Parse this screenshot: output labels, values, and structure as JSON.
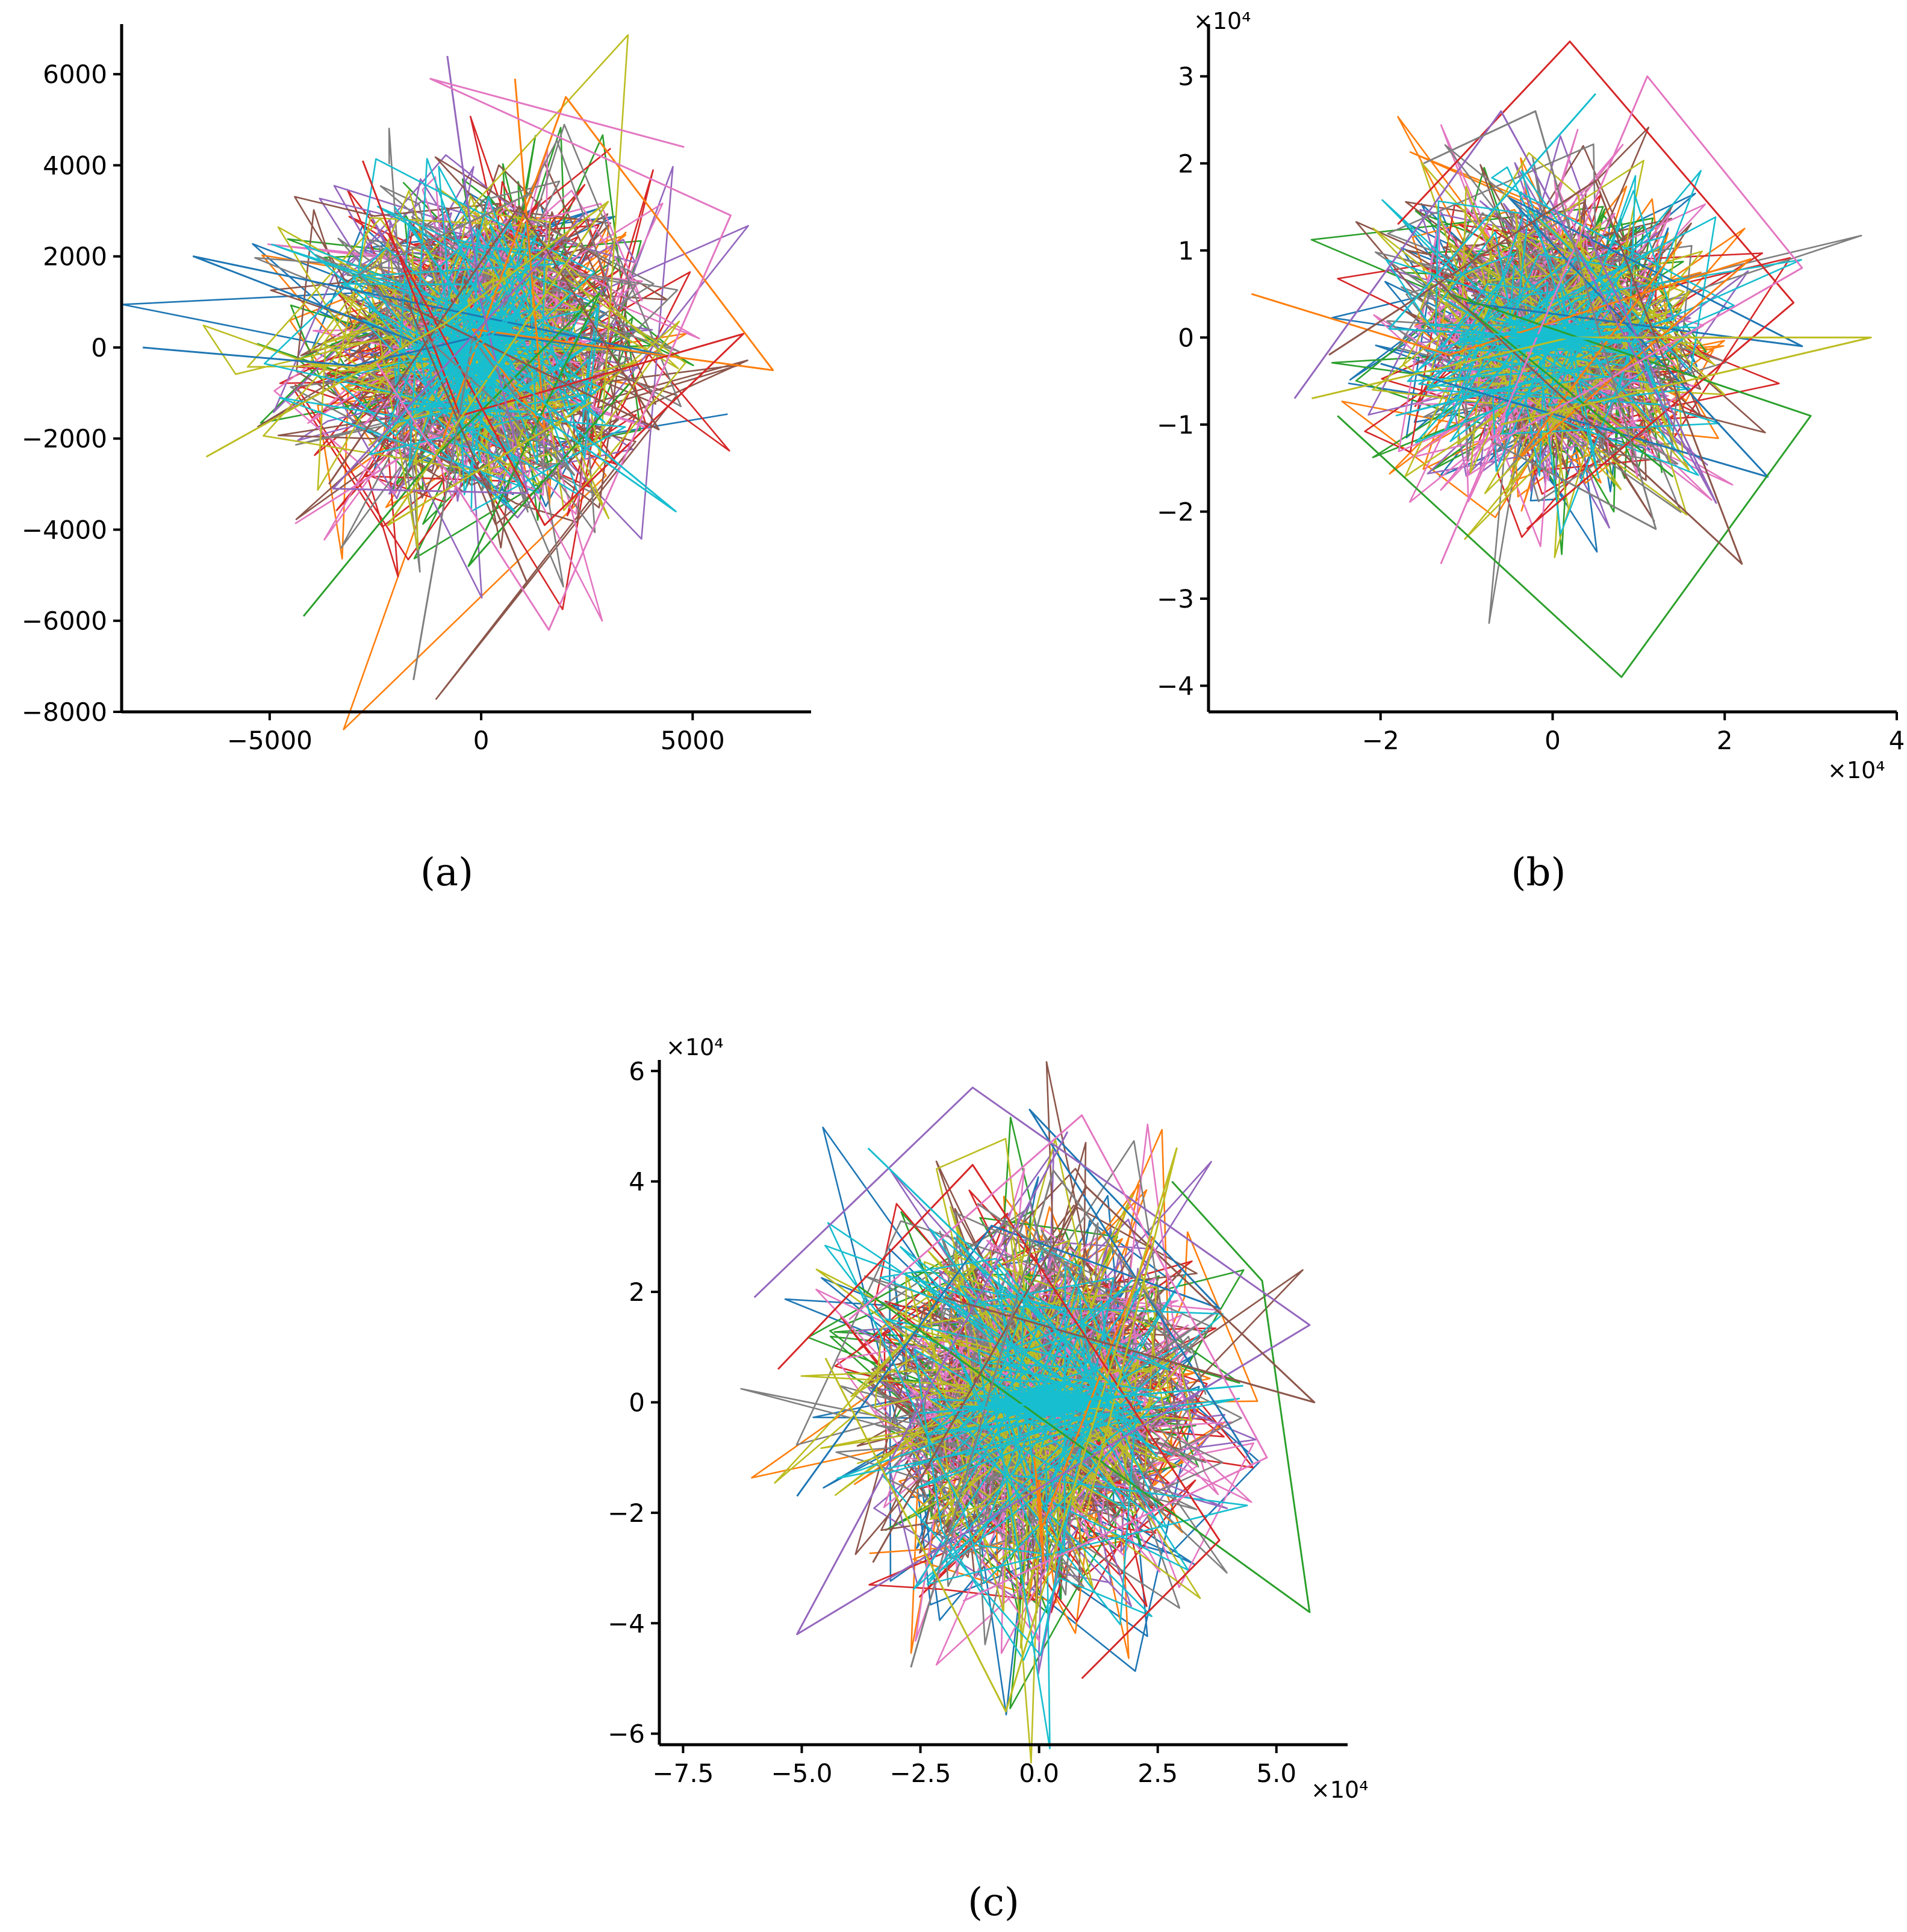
{
  "figure": {
    "palette": [
      "#1f77b4",
      "#ff7f0e",
      "#2ca02c",
      "#d62728",
      "#9467bd",
      "#8c564b",
      "#e377c2",
      "#7f7f7f",
      "#bcbd22",
      "#17becf"
    ]
  },
  "chart_data": [
    {
      "id": "a",
      "type": "line",
      "caption": "(a)",
      "title": "",
      "xlabel": "",
      "ylabel": "",
      "xlim": [
        -8500,
        7800
      ],
      "ylim": [
        -8000,
        7100
      ],
      "x_ticks": [
        -5000,
        0,
        5000
      ],
      "x_tick_labels": [
        "−5000",
        "0",
        "5000"
      ],
      "y_ticks": [
        -8000,
        -6000,
        -4000,
        -2000,
        0,
        2000,
        4000,
        6000
      ],
      "y_tick_labels": [
        "−8000",
        "−6000",
        "−4000",
        "−2000",
        "0",
        "2000",
        "4000",
        "6000"
      ],
      "x_multiplier": "",
      "y_multiplier": "",
      "cloud": {
        "spread_x": 2100,
        "spread_y": 2000,
        "series_count": 10,
        "segments_per_series": 110
      },
      "series": [
        {
          "name": "s0",
          "color": "#1f77b4",
          "x": [
            -8000,
            -3000,
            200,
            4500,
            -6800,
            -1500
          ],
          "y": [
            0,
            -400,
            300,
            -200,
            2000,
            100
          ]
        },
        {
          "name": "s1",
          "color": "#ff7f0e",
          "x": [
            800,
            1500,
            -200,
            6900,
            2000,
            -900
          ],
          "y": [
            5900,
            -1800,
            400,
            -500,
            5500,
            -2000
          ]
        },
        {
          "name": "s2",
          "color": "#2ca02c",
          "x": [
            -4200,
            -1200,
            2800,
            -300,
            3500
          ],
          "y": [
            -5900,
            -2500,
            1200,
            -4800,
            -800
          ]
        },
        {
          "name": "s3",
          "color": "#d62728",
          "x": [
            -2800,
            -500,
            6200,
            1500,
            -2200
          ],
          "y": [
            4100,
            -1500,
            300,
            -3900,
            2500
          ]
        },
        {
          "name": "s4",
          "color": "#9467bd",
          "x": [
            -800,
            0,
            1100,
            -3500,
            2400
          ],
          "y": [
            6400,
            1000,
            -3200,
            -3100,
            2900
          ]
        },
        {
          "name": "s5",
          "color": "#8c564b",
          "x": [
            -3600,
            900,
            4200,
            -1700,
            1100
          ],
          "y": [
            -3000,
            3100,
            -1800,
            900,
            -5200
          ]
        },
        {
          "name": "s6",
          "color": "#e377c2",
          "x": [
            4800,
            -1200,
            5900,
            1600,
            -2500
          ],
          "y": [
            4400,
            5900,
            2900,
            -6200,
            -300
          ]
        },
        {
          "name": "s7",
          "color": "#7f7f7f",
          "x": [
            -1600,
            -200,
            2200,
            -2900,
            1200
          ],
          "y": [
            -7300,
            200,
            -2800,
            1600,
            3400
          ]
        },
        {
          "name": "s8",
          "color": "#bcbd22",
          "x": [
            -6500,
            -900,
            3000,
            -2200,
            2600
          ],
          "y": [
            -2400,
            500,
            3200,
            -3900,
            -1200
          ]
        },
        {
          "name": "s9",
          "color": "#17becf",
          "x": [
            -1500,
            1000,
            -600,
            4600,
            300
          ],
          "y": [
            -1200,
            900,
            -200,
            -3600,
            -300
          ]
        }
      ]
    },
    {
      "id": "b",
      "type": "line",
      "caption": "(b)",
      "title": "",
      "xlabel": "",
      "ylabel": "",
      "xlim": [
        -4.0,
        4.0
      ],
      "ylim": [
        -4.3,
        3.6
      ],
      "x_ticks": [
        -2,
        0,
        2,
        4
      ],
      "x_tick_labels": [
        "−2",
        "0",
        "2",
        "4"
      ],
      "y_ticks": [
        -4,
        -3,
        -2,
        -1,
        0,
        1,
        2,
        3
      ],
      "y_tick_labels": [
        "−4",
        "−3",
        "−2",
        "−1",
        "0",
        "1",
        "2",
        "3"
      ],
      "x_multiplier": "×10⁴",
      "y_multiplier": "×10⁴",
      "cloud": {
        "spread_x": 0.9,
        "spread_y": 0.9,
        "series_count": 10,
        "segments_per_series": 110
      },
      "series": [
        {
          "name": "s0",
          "color": "#1f77b4",
          "x": [
            -1.0,
            2.9,
            -0.5,
            2.5,
            -2.0
          ],
          "y": [
            0.4,
            -0.1,
            1.6,
            -1.6,
            -0.3
          ]
        },
        {
          "name": "s1",
          "color": "#ff7f0e",
          "x": [
            -3.5,
            -1.2,
            2.3,
            -0.4,
            1.5
          ],
          "y": [
            0.5,
            -0.2,
            0.9,
            -1.4,
            1.1
          ]
        },
        {
          "name": "s2",
          "color": "#2ca02c",
          "x": [
            -2.5,
            0.8,
            3.0,
            -1.2,
            1.4
          ],
          "y": [
            -0.9,
            -3.9,
            -0.9,
            0.5,
            -1.6
          ]
        },
        {
          "name": "s3",
          "color": "#d62728",
          "x": [
            -1.8,
            0.2,
            2.8,
            -0.3
          ],
          "y": [
            1.3,
            3.4,
            0.4,
            -2.2
          ]
        },
        {
          "name": "s4",
          "color": "#9467bd",
          "x": [
            -3.0,
            -0.6,
            1.9,
            0.4
          ],
          "y": [
            -0.7,
            2.6,
            -1.9,
            1.2
          ]
        },
        {
          "name": "s5",
          "color": "#8c564b",
          "x": [
            -2.6,
            0.5,
            2.2,
            -1.4
          ],
          "y": [
            -0.2,
            1.8,
            -2.6,
            0.7
          ]
        },
        {
          "name": "s6",
          "color": "#e377c2",
          "x": [
            -1.3,
            1.1,
            2.9,
            -0.8
          ],
          "y": [
            -2.6,
            3.0,
            0.8,
            -1.3
          ]
        },
        {
          "name": "s7",
          "color": "#7f7f7f",
          "x": [
            -1.5,
            -0.2,
            1.2,
            -0.7
          ],
          "y": [
            2.0,
            2.6,
            -2.2,
            -1.2
          ]
        },
        {
          "name": "s8",
          "color": "#bcbd22",
          "x": [
            -2.8,
            0.2,
            3.7,
            -0.6
          ],
          "y": [
            -0.7,
            0.0,
            0.0,
            -1.0
          ]
        },
        {
          "name": "s9",
          "color": "#17becf",
          "x": [
            -0.5,
            1.0,
            -1.9,
            0.5
          ],
          "y": [
            0.05,
            -0.05,
            0.1,
            2.8
          ]
        }
      ]
    },
    {
      "id": "c",
      "type": "line",
      "caption": "(c)",
      "title": "",
      "xlabel": "",
      "ylabel": "",
      "xlim": [
        -8.0,
        6.5
      ],
      "ylim": [
        -6.2,
        6.2
      ],
      "x_ticks": [
        -7.5,
        -5.0,
        -2.5,
        0.0,
        2.5,
        5.0
      ],
      "x_tick_labels": [
        "−7.5",
        "−5.0",
        "−2.5",
        "0.0",
        "2.5",
        "5.0"
      ],
      "y_ticks": [
        -6,
        -4,
        -2,
        0,
        2,
        4,
        6
      ],
      "y_tick_labels": [
        "−6",
        "−4",
        "−2",
        "0",
        "2",
        "4",
        "6"
      ],
      "x_multiplier": "×10⁴",
      "y_multiplier": "×10⁴",
      "cloud": {
        "spread_x": 1.9,
        "spread_y": 1.8,
        "series_count": 10,
        "segments_per_series": 130
      },
      "series": [
        {
          "name": "s0",
          "color": "#1f77b4",
          "x": [
            -5.1,
            -1.0,
            3.8,
            -0.2,
            4.5
          ],
          "y": [
            -1.7,
            3.2,
            1.7,
            5.3,
            -1.1
          ]
        },
        {
          "name": "s1",
          "color": "#ff7f0e",
          "x": [
            0.0,
            0.1,
            -0.1,
            0.05,
            2.4
          ],
          "y": [
            -1.4,
            -3.0,
            -1.0,
            -2.3,
            3.0
          ]
        },
        {
          "name": "s2",
          "color": "#2ca02c",
          "x": [
            2.8,
            4.7,
            5.7,
            -3.8
          ],
          "y": [
            4.0,
            2.2,
            -3.8,
            2.1
          ]
        },
        {
          "name": "s3",
          "color": "#d62728",
          "x": [
            -5.5,
            -1.4,
            3.8,
            0.9
          ],
          "y": [
            0.6,
            4.3,
            -2.5,
            -5.0
          ]
        },
        {
          "name": "s4",
          "color": "#9467bd",
          "x": [
            -6.0,
            -1.4,
            5.7,
            -5.1,
            0.6
          ],
          "y": [
            1.9,
            5.7,
            1.4,
            -4.2,
            4.9
          ]
        },
        {
          "name": "s5",
          "color": "#8c564b",
          "x": [
            -3.5,
            1.0,
            5.8,
            -2.0
          ],
          "y": [
            -2.9,
            3.9,
            0.0,
            1.9
          ]
        },
        {
          "name": "s6",
          "color": "#e377c2",
          "x": [
            -4.0,
            0.9,
            4.8,
            -1.6
          ],
          "y": [
            1.5,
            5.2,
            -1.0,
            -3.6
          ]
        },
        {
          "name": "s7",
          "color": "#7f7f7f",
          "x": [
            -2.7,
            0.3,
            3.2,
            -1.3
          ],
          "y": [
            -4.8,
            4.2,
            0.9,
            3.6
          ]
        },
        {
          "name": "s8",
          "color": "#bcbd22",
          "x": [
            -4.5,
            -0.7,
            2.9,
            1.0
          ],
          "y": [
            0.8,
            -5.6,
            4.6,
            -2.0
          ]
        },
        {
          "name": "s9",
          "color": "#17becf",
          "x": [
            -3.6,
            1.8,
            -2.5,
            4.3
          ],
          "y": [
            4.6,
            0.1,
            -0.2,
            0.3
          ]
        }
      ]
    }
  ]
}
